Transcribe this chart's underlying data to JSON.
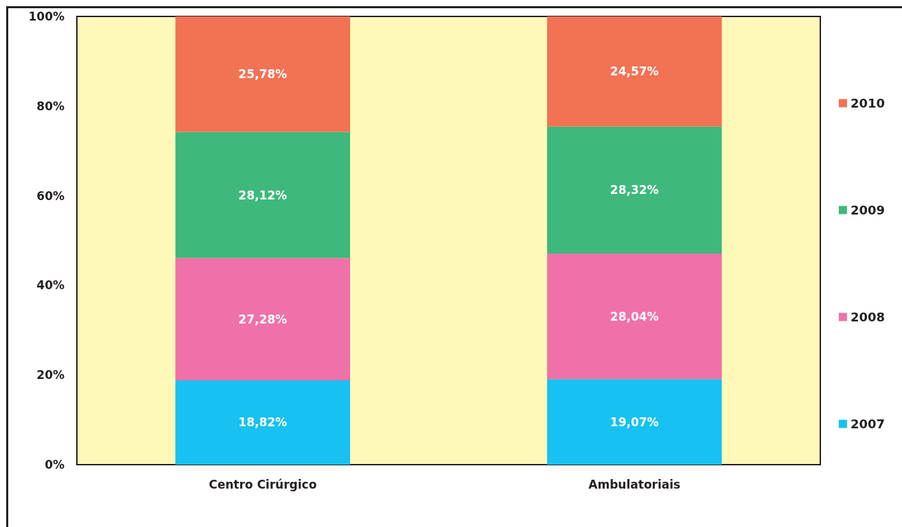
{
  "chart_data": {
    "type": "bar",
    "stacked": true,
    "categories": [
      "Centro Cirúrgico",
      "Ambulatoriais"
    ],
    "series": [
      {
        "name": "2007",
        "color": "#17c1f1",
        "values": [
          18.82,
          19.07
        ],
        "value_labels": [
          "18,82%",
          "19,07%"
        ]
      },
      {
        "name": "2008",
        "color": "#f071a9",
        "values": [
          27.28,
          28.04
        ],
        "value_labels": [
          "27,28%",
          "28,04%"
        ]
      },
      {
        "name": "2009",
        "color": "#3eb87c",
        "values": [
          28.12,
          28.32
        ],
        "value_labels": [
          "28,12%",
          "28,32%"
        ]
      },
      {
        "name": "2010",
        "color": "#f27254",
        "values": [
          25.78,
          24.57
        ],
        "value_labels": [
          "25,78%",
          "24,57%"
        ]
      }
    ],
    "ylim": [
      0,
      100
    ],
    "yticks": [
      {
        "value": 0,
        "label": "0%"
      },
      {
        "value": 20,
        "label": "20%"
      },
      {
        "value": 40,
        "label": "40%"
      },
      {
        "value": 60,
        "label": "60%"
      },
      {
        "value": 80,
        "label": "80%"
      },
      {
        "value": 100,
        "label": "100%"
      }
    ],
    "grid": false,
    "legend": "right"
  }
}
